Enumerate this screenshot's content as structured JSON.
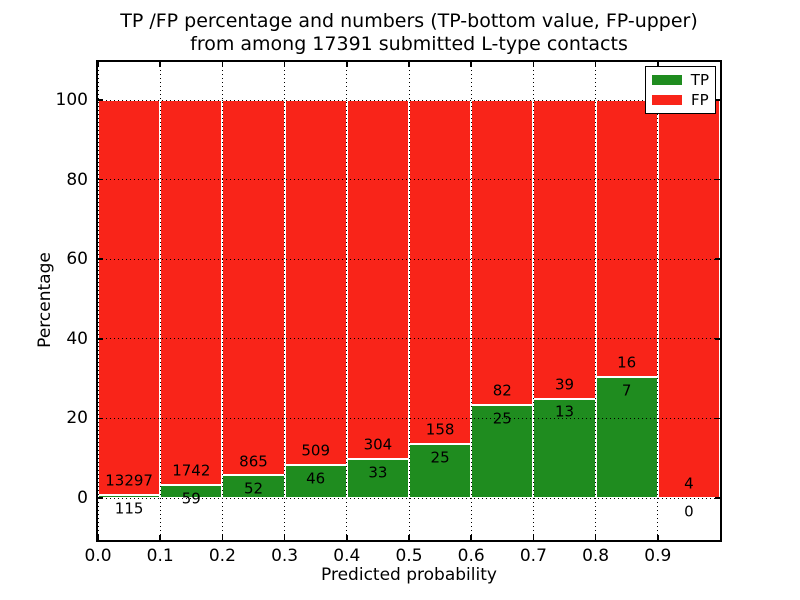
{
  "title": {
    "line1": "TP /FP percentage and numbers (TP-bottom value, FP-upper)",
    "line2": "from among 17391 submitted L-type contacts"
  },
  "axes": {
    "ylabel": "Percentage",
    "xlabel": "Predicted probability",
    "y_tick_labels": [
      "0",
      "20",
      "40",
      "60",
      "80",
      "100"
    ],
    "y_tick_values": [
      0,
      20,
      40,
      60,
      80,
      100
    ],
    "x_tick_labels": [
      "0.0",
      "0.1",
      "0.2",
      "0.3",
      "0.4",
      "0.5",
      "0.6",
      "0.7",
      "0.8",
      "0.9"
    ],
    "x_tick_values": [
      0.0,
      0.1,
      0.2,
      0.3,
      0.4,
      0.5,
      0.6,
      0.7,
      0.8,
      0.9
    ]
  },
  "legend": {
    "items": [
      {
        "label": "TP",
        "color": "#1f8c1f"
      },
      {
        "label": "FP",
        "color": "#f92419"
      }
    ],
    "position": "upper right"
  },
  "chart_data": {
    "type": "bar",
    "stacked": true,
    "normalized_to_percent": 100,
    "title": "TP /FP percentage and numbers (TP-bottom value, FP-upper) from among 17391 submitted L-type contacts",
    "xlabel": "Predicted probability",
    "ylabel": "Percentage",
    "total_contacts": 17391,
    "bin_edges": [
      0.0,
      0.1,
      0.2,
      0.3,
      0.4,
      0.5,
      0.6,
      0.7,
      0.8,
      0.9,
      1.0
    ],
    "categories": [
      "0.0-0.1",
      "0.1-0.2",
      "0.2-0.3",
      "0.3-0.4",
      "0.4-0.5",
      "0.5-0.6",
      "0.6-0.7",
      "0.7-0.8",
      "0.8-0.9",
      "0.9-1.0"
    ],
    "series": [
      {
        "name": "TP",
        "color": "#1f8c1f",
        "counts": [
          115,
          59,
          52,
          46,
          33,
          25,
          25,
          13,
          7,
          0
        ]
      },
      {
        "name": "FP",
        "color": "#f92419",
        "counts": [
          13297,
          1742,
          865,
          509,
          304,
          158,
          82,
          39,
          16,
          4
        ]
      }
    ],
    "tp_percent": [
      0.86,
      3.28,
      5.67,
      8.29,
      9.79,
      13.66,
      23.36,
      25.0,
      30.43,
      0.0
    ],
    "xlim": [
      0.0,
      1.0
    ],
    "ylim": [
      -10.55,
      109.55
    ],
    "grid": "dotted, both axes, drawn above bars",
    "legend_position": "upper right"
  }
}
